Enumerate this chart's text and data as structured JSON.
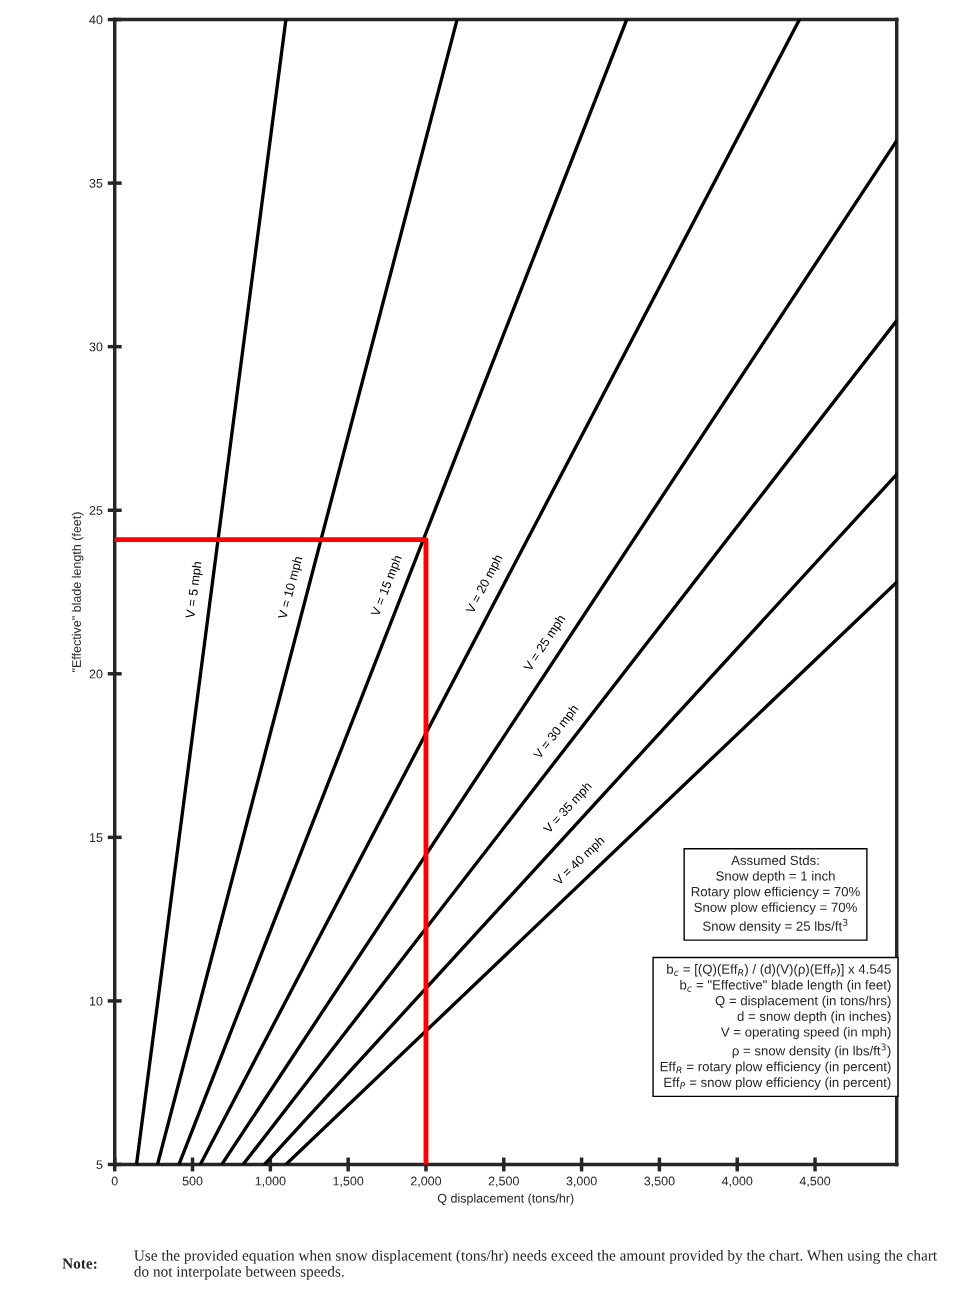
{
  "chart_data": {
    "type": "line",
    "xlabel": "Q displacement (tons/hr)",
    "ylabel": "\"Effective\" blade length (feet)",
    "xlim": [
      0,
      5025
    ],
    "ylim": [
      5,
      40
    ],
    "xticks": [
      0,
      500,
      {
        "value": 1000,
        "label": "1,000"
      },
      {
        "value": 1500,
        "label": "1,500"
      },
      {
        "value": 2000,
        "label": "2,000"
      },
      {
        "value": 2500,
        "label": "2,500"
      },
      {
        "value": 3000,
        "label": "3,000"
      },
      {
        "value": 3500,
        "label": "3,500"
      },
      {
        "value": 4000,
        "label": "4,000"
      },
      {
        "value": 4500,
        "label": "4,500"
      }
    ],
    "yticks": [
      5,
      10,
      15,
      20,
      25,
      30,
      35,
      40
    ],
    "grid": false,
    "legend": false,
    "marker": "none",
    "line_style": "solid",
    "series": [
      {
        "name": "V = 5 mph",
        "color": "#000000",
        "x": [
          140,
          1100
        ],
        "values": [
          5,
          40
        ]
      },
      {
        "name": "V = 10 mph",
        "color": "#000000",
        "x": [
          275,
          2200
        ],
        "values": [
          5,
          40
        ]
      },
      {
        "name": "V = 15 mph",
        "color": "#000000",
        "x": [
          413,
          3290
        ],
        "values": [
          5,
          40
        ]
      },
      {
        "name": "V = 20 mph",
        "color": "#000000",
        "x": [
          550,
          4400
        ],
        "values": [
          5,
          40
        ]
      },
      {
        "name": "V = 25 mph",
        "color": "#000000",
        "x": [
          688,
          5025
        ],
        "values": [
          5,
          36.3
        ]
      },
      {
        "name": "V = 30 mph",
        "color": "#000000",
        "x": [
          825,
          5025
        ],
        "values": [
          5,
          30.8
        ]
      },
      {
        "name": "V = 35 mph",
        "color": "#000000",
        "x": [
          963,
          5025
        ],
        "values": [
          5,
          26.1
        ]
      },
      {
        "name": "V = 40 mph",
        "color": "#000000",
        "x": [
          1100,
          5025
        ],
        "values": [
          5,
          22.8
        ]
      },
      {
        "color": "#ff0000",
        "x": [
          0,
          2000,
          2000
        ],
        "values": [
          24.1,
          24.1,
          5
        ]
      }
    ],
    "annotations": [
      "Assumed Stds:\nSnow depth = 1 inch\nRotary plow efficiency = 70%\nSnow plow efficiency = 70%\nSnow density = 25 lbs/ft$^{3}$",
      "b$_{c}$ = [(Q)(Eff$_{R}$) / (d)(V)(ρ)(Eff$_{P}$)] x 4.545\nb$_{c}$ = \"Effective\" blade length (in feet)\nQ = displacement (in tons/hrs)\nd = snow depth (in inches)\nV = operating speed (in mph)\nρ = snow density (in lbs/ft$^{3}$)\nEff$_{R}$ = rotary plow efficiency (in percent)\nEff$_{P}$ = snow plow efficiency (in percent)",
      "Note:",
      "Use the provided equation when snow displacement (tons/hr) needs exceed the amount provided by the chart. When using the chart do not interpolate between speeds."
    ]
  }
}
